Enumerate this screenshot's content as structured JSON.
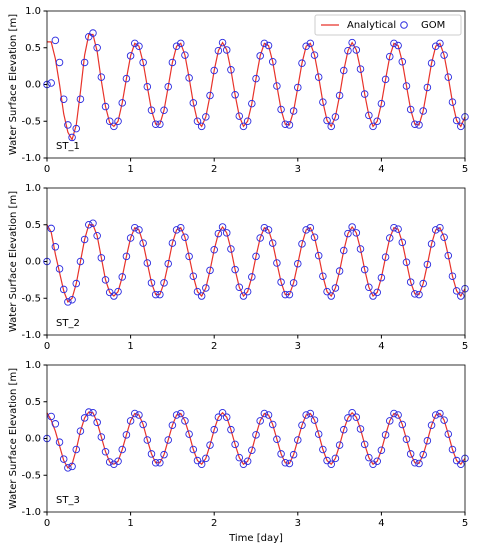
{
  "chart_data": [
    {
      "type": "line",
      "ylabel": "Water Surface Elevation [m]",
      "annotation": "ST_1",
      "legend": "upper right",
      "xlim": [
        0,
        5
      ],
      "ylim": [
        -1,
        1
      ],
      "xticks": [
        0,
        1,
        2,
        3,
        4,
        5
      ],
      "yticks": [
        {
          "value": -1,
          "label": "-1.0"
        },
        {
          "value": -0.5,
          "label": "-0.5"
        },
        {
          "value": 0,
          "label": "0.0"
        },
        {
          "value": 0.5,
          "label": "0.5"
        },
        {
          "value": 1,
          "label": "1.0"
        }
      ],
      "x": [
        0,
        0.05,
        0.1,
        0.15,
        0.2,
        0.25,
        0.3,
        0.35,
        0.4,
        0.45,
        0.5,
        0.55,
        0.6,
        0.65,
        0.7,
        0.75,
        0.8,
        0.85,
        0.9,
        0.95,
        1,
        1.05,
        1.1,
        1.15,
        1.2,
        1.25,
        1.3,
        1.35,
        1.4,
        1.45,
        1.5,
        1.55,
        1.6,
        1.65,
        1.7,
        1.75,
        1.8,
        1.85,
        1.9,
        1.95,
        2,
        2.05,
        2.1,
        2.15,
        2.2,
        2.25,
        2.3,
        2.35,
        2.4,
        2.45,
        2.5,
        2.55,
        2.6,
        2.65,
        2.7,
        2.75,
        2.8,
        2.85,
        2.9,
        2.95,
        3,
        3.05,
        3.1,
        3.15,
        3.2,
        3.25,
        3.3,
        3.35,
        3.4,
        3.45,
        3.5,
        3.55,
        3.6,
        3.65,
        3.7,
        3.75,
        3.8,
        3.85,
        3.9,
        3.95,
        4,
        4.05,
        4.1,
        4.15,
        4.2,
        4.25,
        4.3,
        4.35,
        4.4,
        4.45,
        4.5,
        4.55,
        4.6,
        4.65,
        4.7,
        4.75,
        4.8,
        4.85,
        4.9,
        4.95,
        5
      ],
      "series": [
        {
          "name": "Analytical",
          "style": "line",
          "color": "#e8332a",
          "values": [
            0.58,
            0.58,
            0.35,
            0.0,
            -0.4,
            -0.65,
            -0.75,
            -0.55,
            -0.1,
            0.4,
            0.68,
            0.68,
            0.45,
            0.05,
            -0.3,
            -0.52,
            -0.57,
            -0.5,
            -0.25,
            0.08,
            0.39,
            0.56,
            0.52,
            0.3,
            -0.03,
            -0.35,
            -0.54,
            -0.54,
            -0.35,
            -0.03,
            0.3,
            0.52,
            0.56,
            0.4,
            0.09,
            -0.25,
            -0.5,
            -0.57,
            -0.44,
            -0.15,
            0.19,
            0.46,
            0.57,
            0.47,
            0.2,
            -0.14,
            -0.43,
            -0.57,
            -0.5,
            -0.26,
            0.08,
            0.39,
            0.56,
            0.53,
            0.31,
            -0.02,
            -0.34,
            -0.54,
            -0.55,
            -0.36,
            -0.04,
            0.29,
            0.52,
            0.56,
            0.4,
            0.1,
            -0.24,
            -0.49,
            -0.57,
            -0.44,
            -0.15,
            0.19,
            0.46,
            0.57,
            0.47,
            0.21,
            -0.13,
            -0.42,
            -0.57,
            -0.5,
            -0.26,
            0.07,
            0.38,
            0.56,
            0.53,
            0.31,
            -0.02,
            -0.34,
            -0.54,
            -0.55,
            -0.36,
            -0.04,
            0.29,
            0.52,
            0.56,
            0.4,
            0.1,
            -0.24,
            -0.49,
            -0.57,
            -0.44
          ]
        },
        {
          "name": "GOM",
          "style": "circle",
          "color": "#2a2ae0",
          "values": [
            0.0,
            0.02,
            0.6,
            0.3,
            -0.2,
            -0.55,
            -0.72,
            -0.6,
            -0.2,
            0.3,
            0.65,
            0.7,
            0.5,
            0.1,
            -0.3,
            -0.5,
            -0.57,
            -0.5,
            -0.25,
            0.08,
            0.39,
            0.56,
            0.52,
            0.3,
            -0.03,
            -0.35,
            -0.54,
            -0.54,
            -0.35,
            -0.03,
            0.3,
            0.52,
            0.56,
            0.4,
            0.09,
            -0.25,
            -0.5,
            -0.57,
            -0.44,
            -0.15,
            0.19,
            0.46,
            0.57,
            0.47,
            0.2,
            -0.14,
            -0.43,
            -0.57,
            -0.5,
            -0.26,
            0.08,
            0.39,
            0.56,
            0.53,
            0.31,
            -0.02,
            -0.34,
            -0.54,
            -0.55,
            -0.36,
            -0.04,
            0.29,
            0.52,
            0.56,
            0.4,
            0.1,
            -0.24,
            -0.49,
            -0.57,
            -0.44,
            -0.15,
            0.19,
            0.46,
            0.57,
            0.47,
            0.21,
            -0.13,
            -0.42,
            -0.57,
            -0.5,
            -0.26,
            0.07,
            0.38,
            0.56,
            0.53,
            0.31,
            -0.02,
            -0.34,
            -0.54,
            -0.55,
            -0.36,
            -0.04,
            0.29,
            0.52,
            0.56,
            0.4,
            0.1,
            -0.24,
            -0.49,
            -0.57,
            -0.44
          ]
        }
      ]
    },
    {
      "type": "line",
      "ylabel": "Water Surface Elevation [m]",
      "annotation": "ST_2",
      "xlim": [
        0,
        5
      ],
      "ylim": [
        -1,
        1
      ],
      "xticks": [
        0,
        1,
        2,
        3,
        4,
        5
      ],
      "yticks": [
        {
          "value": -1,
          "label": "-1.0"
        },
        {
          "value": -0.5,
          "label": "-0.5"
        },
        {
          "value": 0,
          "label": "0.0"
        },
        {
          "value": 0.5,
          "label": "0.5"
        },
        {
          "value": 1,
          "label": "1.0"
        }
      ],
      "x": [
        0,
        0.05,
        0.1,
        0.15,
        0.2,
        0.25,
        0.3,
        0.35,
        0.4,
        0.45,
        0.5,
        0.55,
        0.6,
        0.65,
        0.7,
        0.75,
        0.8,
        0.85,
        0.9,
        0.95,
        1,
        1.05,
        1.1,
        1.15,
        1.2,
        1.25,
        1.3,
        1.35,
        1.4,
        1.45,
        1.5,
        1.55,
        1.6,
        1.65,
        1.7,
        1.75,
        1.8,
        1.85,
        1.9,
        1.95,
        2,
        2.05,
        2.1,
        2.15,
        2.2,
        2.25,
        2.3,
        2.35,
        2.4,
        2.45,
        2.5,
        2.55,
        2.6,
        2.65,
        2.7,
        2.75,
        2.8,
        2.85,
        2.9,
        2.95,
        3,
        3.05,
        3.1,
        3.15,
        3.2,
        3.25,
        3.3,
        3.35,
        3.4,
        3.45,
        3.5,
        3.55,
        3.6,
        3.65,
        3.7,
        3.75,
        3.8,
        3.85,
        3.9,
        3.95,
        4,
        4.05,
        4.1,
        4.15,
        4.2,
        4.25,
        4.3,
        4.35,
        4.4,
        4.45,
        4.5,
        4.55,
        4.6,
        4.65,
        4.7,
        4.75,
        4.8,
        4.85,
        4.9,
        4.95,
        5
      ],
      "series": [
        {
          "style": "line",
          "color": "#e8332a",
          "values": [
            0.5,
            0.4,
            0.1,
            -0.15,
            -0.4,
            -0.55,
            -0.5,
            -0.3,
            0.0,
            0.3,
            0.5,
            0.5,
            0.35,
            0.05,
            -0.25,
            -0.42,
            -0.47,
            -0.41,
            -0.21,
            0.07,
            0.32,
            0.46,
            0.43,
            0.25,
            -0.02,
            -0.29,
            -0.45,
            -0.45,
            -0.29,
            -0.03,
            0.25,
            0.43,
            0.46,
            0.33,
            0.07,
            -0.2,
            -0.41,
            -0.47,
            -0.36,
            -0.12,
            0.16,
            0.38,
            0.47,
            0.39,
            0.17,
            -0.11,
            -0.35,
            -0.47,
            -0.41,
            -0.21,
            0.07,
            0.32,
            0.46,
            0.43,
            0.25,
            -0.02,
            -0.28,
            -0.45,
            -0.45,
            -0.29,
            -0.03,
            0.24,
            0.43,
            0.46,
            0.33,
            0.08,
            -0.2,
            -0.41,
            -0.47,
            -0.36,
            -0.13,
            0.15,
            0.38,
            0.47,
            0.39,
            0.17,
            -0.11,
            -0.35,
            -0.47,
            -0.42,
            -0.22,
            0.06,
            0.32,
            0.46,
            0.44,
            0.26,
            -0.01,
            -0.28,
            -0.44,
            -0.45,
            -0.3,
            -0.04,
            0.24,
            0.43,
            0.46,
            0.33,
            0.08,
            -0.2,
            -0.4,
            -0.47,
            -0.37
          ]
        },
        {
          "style": "circle",
          "color": "#2a2ae0",
          "values": [
            0.0,
            0.45,
            0.2,
            -0.1,
            -0.38,
            -0.55,
            -0.52,
            -0.3,
            0.0,
            0.3,
            0.5,
            0.52,
            0.35,
            0.05,
            -0.25,
            -0.42,
            -0.47,
            -0.41,
            -0.21,
            0.07,
            0.32,
            0.46,
            0.43,
            0.25,
            -0.02,
            -0.29,
            -0.45,
            -0.45,
            -0.29,
            -0.03,
            0.25,
            0.43,
            0.46,
            0.33,
            0.07,
            -0.2,
            -0.41,
            -0.47,
            -0.36,
            -0.12,
            0.16,
            0.38,
            0.47,
            0.39,
            0.17,
            -0.11,
            -0.35,
            -0.47,
            -0.41,
            -0.21,
            0.07,
            0.32,
            0.46,
            0.43,
            0.25,
            -0.02,
            -0.28,
            -0.45,
            -0.45,
            -0.29,
            -0.03,
            0.24,
            0.43,
            0.46,
            0.33,
            0.08,
            -0.2,
            -0.41,
            -0.47,
            -0.36,
            -0.13,
            0.15,
            0.38,
            0.47,
            0.39,
            0.17,
            -0.11,
            -0.35,
            -0.47,
            -0.42,
            -0.22,
            0.06,
            0.32,
            0.46,
            0.44,
            0.26,
            -0.01,
            -0.28,
            -0.44,
            -0.45,
            -0.3,
            -0.04,
            0.24,
            0.43,
            0.46,
            0.33,
            0.08,
            -0.2,
            -0.4,
            -0.47,
            -0.37
          ]
        }
      ]
    },
    {
      "type": "line",
      "ylabel": "Water Surface Elevation [m]",
      "annotation": "ST_3",
      "xlabel": "Time [day]",
      "xlim": [
        0,
        5
      ],
      "ylim": [
        -1,
        1
      ],
      "xticks": [
        0,
        1,
        2,
        3,
        4,
        5
      ],
      "yticks": [
        {
          "value": -1,
          "label": "-1.0"
        },
        {
          "value": -0.5,
          "label": "-0.5"
        },
        {
          "value": 0,
          "label": "0.0"
        },
        {
          "value": 0.5,
          "label": "0.5"
        },
        {
          "value": 1,
          "label": "1.0"
        }
      ],
      "x": [
        0,
        0.05,
        0.1,
        0.15,
        0.2,
        0.25,
        0.3,
        0.35,
        0.4,
        0.45,
        0.5,
        0.55,
        0.6,
        0.65,
        0.7,
        0.75,
        0.8,
        0.85,
        0.9,
        0.95,
        1,
        1.05,
        1.1,
        1.15,
        1.2,
        1.25,
        1.3,
        1.35,
        1.4,
        1.45,
        1.5,
        1.55,
        1.6,
        1.65,
        1.7,
        1.75,
        1.8,
        1.85,
        1.9,
        1.95,
        2,
        2.05,
        2.1,
        2.15,
        2.2,
        2.25,
        2.3,
        2.35,
        2.4,
        2.45,
        2.5,
        2.55,
        2.6,
        2.65,
        2.7,
        2.75,
        2.8,
        2.85,
        2.9,
        2.95,
        3,
        3.05,
        3.1,
        3.15,
        3.2,
        3.25,
        3.3,
        3.35,
        3.4,
        3.45,
        3.5,
        3.55,
        3.6,
        3.65,
        3.7,
        3.75,
        3.8,
        3.85,
        3.9,
        3.95,
        4,
        4.05,
        4.1,
        4.15,
        4.2,
        4.25,
        4.3,
        4.35,
        4.4,
        4.45,
        4.5,
        4.55,
        4.6,
        4.65,
        4.7,
        4.75,
        4.8,
        4.85,
        4.9,
        4.95,
        5
      ],
      "series": [
        {
          "style": "line",
          "color": "#e8332a",
          "values": [
            0.35,
            0.25,
            0.1,
            -0.1,
            -0.3,
            -0.4,
            -0.35,
            -0.15,
            0.1,
            0.28,
            0.36,
            0.35,
            0.22,
            0.02,
            -0.18,
            -0.32,
            -0.35,
            -0.31,
            -0.15,
            0.05,
            0.24,
            0.34,
            0.32,
            0.19,
            -0.02,
            -0.21,
            -0.33,
            -0.33,
            -0.22,
            -0.02,
            0.18,
            0.32,
            0.34,
            0.24,
            0.06,
            -0.15,
            -0.3,
            -0.35,
            -0.27,
            -0.09,
            0.12,
            0.29,
            0.35,
            0.29,
            0.12,
            -0.08,
            -0.26,
            -0.35,
            -0.31,
            -0.16,
            0.05,
            0.24,
            0.34,
            0.32,
            0.19,
            -0.01,
            -0.21,
            -0.33,
            -0.34,
            -0.22,
            -0.02,
            0.18,
            0.32,
            0.34,
            0.25,
            0.06,
            -0.15,
            -0.3,
            -0.35,
            -0.27,
            -0.09,
            0.12,
            0.28,
            0.35,
            0.29,
            0.13,
            -0.08,
            -0.26,
            -0.35,
            -0.31,
            -0.16,
            0.05,
            0.24,
            0.34,
            0.32,
            0.19,
            -0.01,
            -0.21,
            -0.33,
            -0.34,
            -0.22,
            -0.03,
            0.18,
            0.32,
            0.34,
            0.25,
            0.06,
            -0.15,
            -0.3,
            -0.35,
            -0.27
          ]
        },
        {
          "style": "circle",
          "color": "#2a2ae0",
          "values": [
            0.0,
            0.3,
            0.2,
            -0.05,
            -0.28,
            -0.4,
            -0.38,
            -0.15,
            0.1,
            0.28,
            0.36,
            0.35,
            0.22,
            0.02,
            -0.18,
            -0.32,
            -0.35,
            -0.31,
            -0.15,
            0.05,
            0.24,
            0.34,
            0.32,
            0.19,
            -0.02,
            -0.21,
            -0.33,
            -0.33,
            -0.22,
            -0.02,
            0.18,
            0.32,
            0.34,
            0.24,
            0.06,
            -0.15,
            -0.3,
            -0.35,
            -0.27,
            -0.09,
            0.12,
            0.29,
            0.35,
            0.29,
            0.12,
            -0.08,
            -0.26,
            -0.35,
            -0.31,
            -0.16,
            0.05,
            0.24,
            0.34,
            0.32,
            0.19,
            -0.01,
            -0.21,
            -0.33,
            -0.34,
            -0.22,
            -0.02,
            0.18,
            0.32,
            0.34,
            0.25,
            0.06,
            -0.15,
            -0.3,
            -0.35,
            -0.27,
            -0.09,
            0.12,
            0.28,
            0.35,
            0.29,
            0.13,
            -0.08,
            -0.26,
            -0.35,
            -0.31,
            -0.16,
            0.05,
            0.24,
            0.34,
            0.32,
            0.19,
            -0.01,
            -0.21,
            -0.33,
            -0.34,
            -0.22,
            -0.03,
            0.18,
            0.32,
            0.34,
            0.25,
            0.06,
            -0.15,
            -0.3,
            -0.35,
            -0.27
          ]
        }
      ]
    }
  ]
}
